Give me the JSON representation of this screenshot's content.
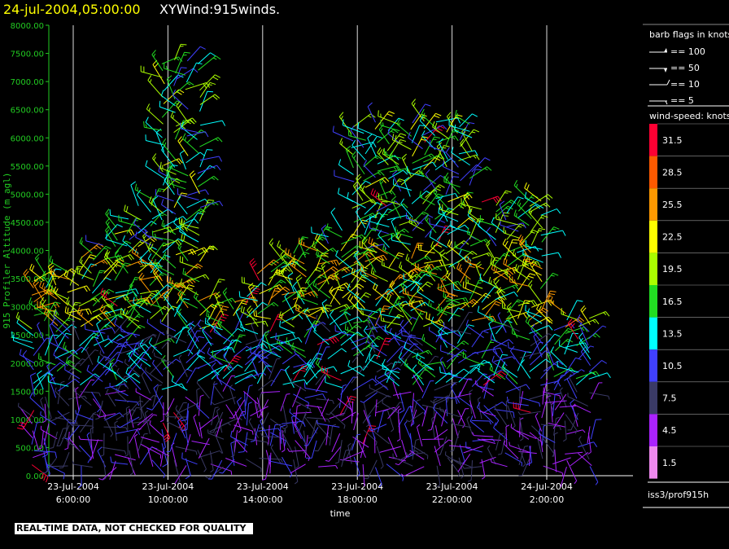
{
  "title": {
    "date": "24-jul-2004,05:00:00",
    "name": "XYWind:915winds."
  },
  "notice": "REAL-TIME DATA, NOT CHECKED FOR QUALITY",
  "footer_id": "iss3/prof915h",
  "legend": {
    "barb_title": "barb flags in knots",
    "barb_items": [
      {
        "label": "== 100",
        "flag": "pennant"
      },
      {
        "label": "== 50",
        "flag": "triangle"
      },
      {
        "label": "== 10",
        "flag": "full-barb"
      },
      {
        "label": "== 5",
        "flag": "half-barb"
      }
    ],
    "speed_title": "wind-speed: knots",
    "speed_scale": [
      {
        "label": "31.5",
        "color": "#ff0033"
      },
      {
        "label": "28.5",
        "color": "#ff5a00"
      },
      {
        "label": "25.5",
        "color": "#ff9900"
      },
      {
        "label": "22.5",
        "color": "#ffff00"
      },
      {
        "label": "19.5",
        "color": "#aaff00"
      },
      {
        "label": "16.5",
        "color": "#22dd22"
      },
      {
        "label": "13.5",
        "color": "#00ffff"
      },
      {
        "label": "10.5",
        "color": "#4040ff"
      },
      {
        "label": "7.5",
        "color": "#3a3a66"
      },
      {
        "label": "4.5",
        "color": "#aa22ff"
      },
      {
        "label": "1.5",
        "color": "#ee88ee"
      }
    ]
  },
  "chart_data": {
    "type": "scatter",
    "title": "24-jul-2004,05:00:00 XYWind:915winds.",
    "xlabel": "time",
    "ylabel": "915 Profiler Altitude (m agl)",
    "ylim": [
      0,
      8000
    ],
    "xlim": [
      "23-Jul-2004 04:00:00",
      "24-Jul-2004 05:00:00"
    ],
    "y_ticks": [
      "0.00",
      "500.00",
      "1000.00",
      "1500.00",
      "2000.00",
      "2500.00",
      "3000.00",
      "3500.00",
      "4000.00",
      "4500.00",
      "5000.00",
      "5500.00",
      "6000.00",
      "6500.00",
      "7000.00",
      "7500.00",
      "8000.00"
    ],
    "x_ticks": [
      {
        "date": "23-Jul-2004",
        "time": "6:00:00",
        "hour": 6
      },
      {
        "date": "23-Jul-2004",
        "time": "10:00:00",
        "hour": 10
      },
      {
        "date": "23-Jul-2004",
        "time": "14:00:00",
        "hour": 14
      },
      {
        "date": "23-Jul-2004",
        "time": "18:00:00",
        "hour": 18
      },
      {
        "date": "23-Jul-2004",
        "time": "22:00:00",
        "hour": 22
      },
      {
        "date": "24-Jul-2004",
        "time": "2:00:00",
        "hour": 26
      }
    ],
    "grid": "vertical lines at x ticks",
    "series": [
      {
        "marker": "wind barbs",
        "x_range_hours": [
          4.3,
          27.9
        ],
        "time_step_hours": 0.5,
        "altitude_range_m": [
          150,
          7450
        ],
        "wind_speed_range_knots": [
          1.5,
          31.5
        ]
      }
    ]
  }
}
